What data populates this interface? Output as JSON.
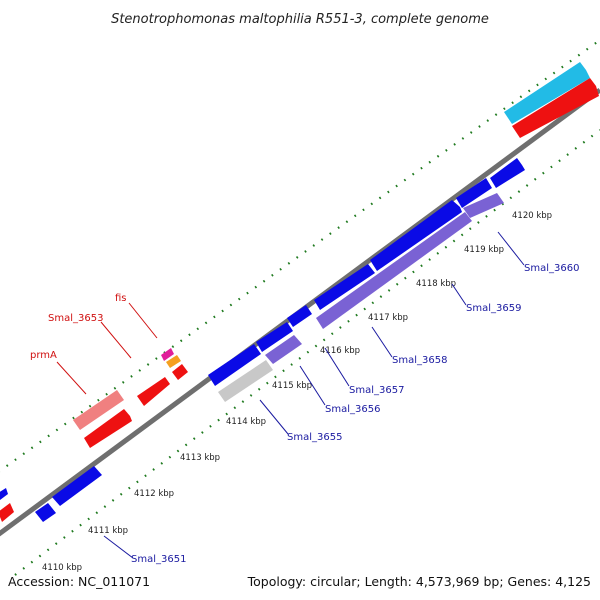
{
  "title": "Stenotrophomonas maltophilia R551-3, complete genome",
  "accession": "Accession: NC_011071",
  "summary": "Topology: circular; Length: 4,573,969 bp; Genes: 4,125",
  "colors": {
    "backbone": "#777777",
    "tick_dots": "#1f7a1f",
    "gene_blue": "#0a0ae6",
    "gene_violet": "#7a62d4",
    "gene_red": "#ee1111",
    "gene_pink": "#f08080",
    "gene_cyan": "#22bbe6",
    "gene_gray": "#c8c8c8",
    "gene_magenta": "#e0209a",
    "gene_orange": "#f5a020"
  },
  "kbp_marks": [
    {
      "label": "4110 kbp",
      "kbp": 4110
    },
    {
      "label": "4111 kbp",
      "kbp": 4111
    },
    {
      "label": "4112 kbp",
      "kbp": 4112
    },
    {
      "label": "4113 kbp",
      "kbp": 4113
    },
    {
      "label": "4114 kbp",
      "kbp": 4114
    },
    {
      "label": "4115 kbp",
      "kbp": 4115
    },
    {
      "label": "4116 kbp",
      "kbp": 4116
    },
    {
      "label": "4117 kbp",
      "kbp": 4117
    },
    {
      "label": "4118 kbp",
      "kbp": 4118
    },
    {
      "label": "4119 kbp",
      "kbp": 4119
    },
    {
      "label": "4120 kbp",
      "kbp": 4120
    }
  ],
  "gene_labels_blue": [
    "Smal_3651",
    "Smal_3655",
    "Smal_3656",
    "Smal_3657",
    "Smal_3658",
    "Smal_3659",
    "Smal_3660"
  ],
  "gene_labels_red": [
    "prmA",
    "Smal_3653",
    "fis"
  ]
}
